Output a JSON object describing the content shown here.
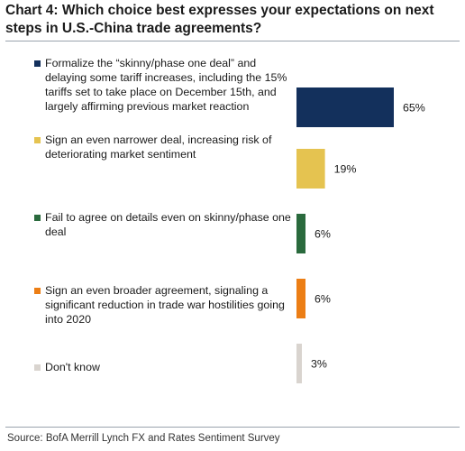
{
  "chart_data": {
    "type": "bar",
    "orientation": "horizontal",
    "title": "Chart 4: Which choice best expresses your expectations on next steps in U.S.-China trade agreements?",
    "categories": [
      "Formalize the “skinny/phase one deal” and delaying some tariff increases, including the 15% tariffs set to take place on December 15th, and largely affirming previous market reaction",
      "Sign an even narrower deal, increasing risk of deteriorating market sentiment",
      "Fail to agree on details even on skinny/phase one deal",
      "Sign an even broader agreement, signaling a significant reduction in trade war hostilities going into 2020",
      "Don't know"
    ],
    "values": [
      65,
      19,
      6,
      6,
      3
    ],
    "value_labels": [
      "65%",
      "19%",
      "6%",
      "6%",
      "3%"
    ],
    "colors": [
      "#13305c",
      "#e5c350",
      "#2a6a3d",
      "#ec7e15",
      "#d9d4cf"
    ],
    "grid": false,
    "legend": "inline-left",
    "xlim": [
      0,
      65
    ]
  },
  "source": "Source: BofA Merrill Lynch FX and Rates Sentiment Survey"
}
